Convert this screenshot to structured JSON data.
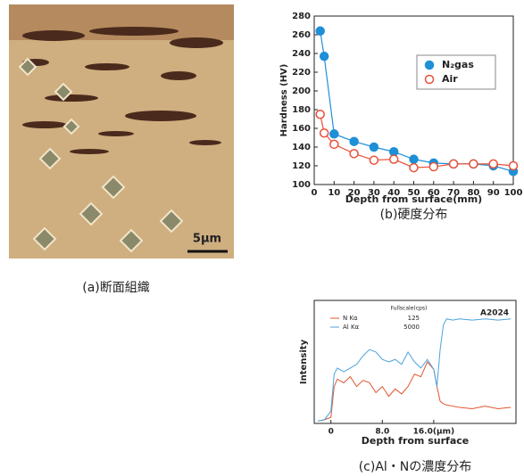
{
  "micrograph": {
    "scale_label": "5μm",
    "caption": "(a)断面組織"
  },
  "chart_data": [
    {
      "type": "line",
      "caption": "(b)硬度分布",
      "xlabel": "Depth from surface(mm)",
      "ylabel": "Hardness (HV)",
      "x": [
        3,
        5,
        10,
        20,
        30,
        40,
        50,
        60,
        70,
        80,
        90,
        100
      ],
      "series": [
        {
          "name": "N₂gas",
          "color": "#1f8fd6",
          "marker": "filled",
          "values": [
            264,
            237,
            154,
            146,
            140,
            135,
            127,
            123,
            122,
            122,
            120,
            114
          ]
        },
        {
          "name": "Air",
          "color": "#e8503a",
          "marker": "open",
          "values": [
            175,
            155,
            143,
            133,
            126,
            127,
            118,
            119,
            122,
            122,
            122,
            120
          ]
        }
      ],
      "xlim": [
        0,
        100
      ],
      "xticks": [
        0,
        10,
        20,
        30,
        40,
        50,
        60,
        70,
        80,
        90,
        100
      ],
      "ylim": [
        100,
        280
      ],
      "yticks": [
        100,
        120,
        140,
        160,
        180,
        200,
        220,
        240,
        260,
        280
      ],
      "legend": "upper right"
    },
    {
      "type": "line",
      "title": "A2024",
      "caption": "(c)Al・Nの濃度分布",
      "xlabel": "Depth from surface",
      "ylabel": "Intensity",
      "legend_title": "Fullscale(cps)",
      "x": [
        -2,
        -1,
        0,
        0.5,
        1,
        2,
        3,
        4,
        5,
        6,
        7,
        8,
        9,
        10,
        11,
        12,
        13,
        14,
        15,
        16,
        16.5,
        17,
        17.5,
        18,
        19,
        20,
        22,
        24,
        26,
        28
      ],
      "series": [
        {
          "name": "N Kα",
          "fullscale": 125,
          "color": "#e0562e",
          "values": [
            2,
            3,
            5,
            30,
            36,
            33,
            38,
            30,
            35,
            33,
            25,
            30,
            22,
            28,
            24,
            30,
            40,
            38,
            50,
            44,
            30,
            18,
            16,
            15,
            14,
            13,
            12,
            14,
            12,
            13
          ]
        },
        {
          "name": "Al Kα",
          "fullscale": 5000,
          "color": "#4aa3dc",
          "values": [
            2,
            3,
            10,
            40,
            45,
            42,
            45,
            48,
            55,
            60,
            58,
            52,
            50,
            52,
            48,
            58,
            50,
            45,
            52,
            44,
            30,
            60,
            80,
            85,
            84,
            85,
            84,
            85,
            84,
            85
          ]
        }
      ],
      "xlim": [
        -2.6,
        28.8
      ],
      "xticks": [
        0,
        {
          "value": 8,
          "label": "8.0"
        },
        {
          "value": 16,
          "label": "16.0(μm)"
        }
      ],
      "ylim": [
        0,
        100
      ],
      "legend": "upper left"
    }
  ]
}
